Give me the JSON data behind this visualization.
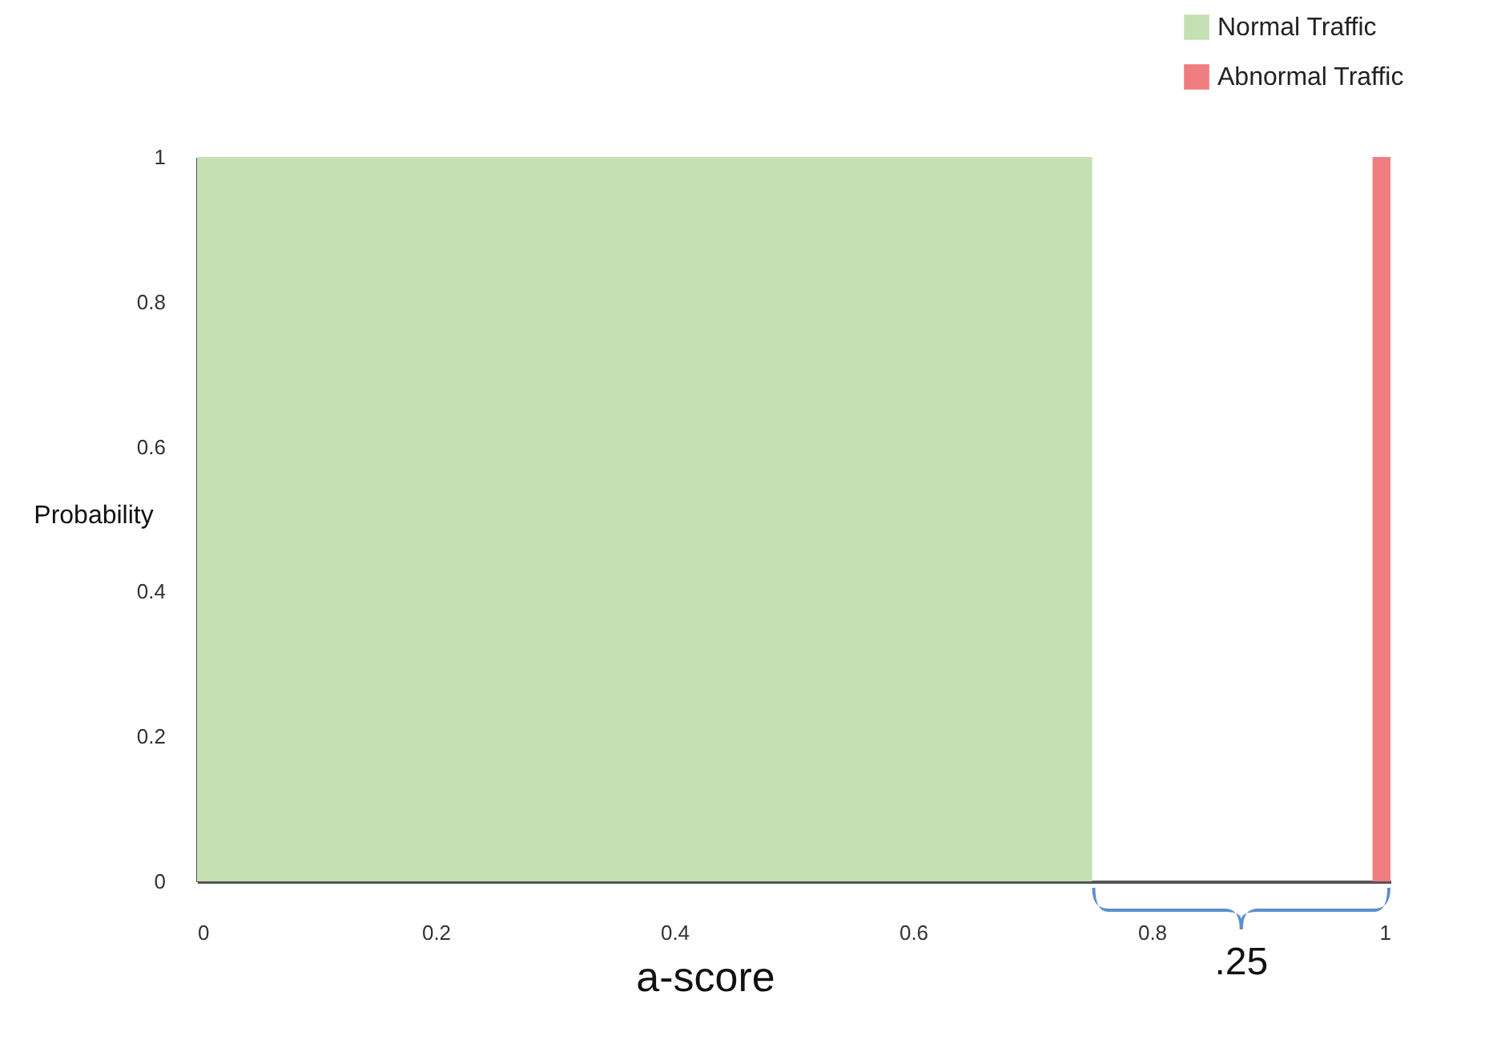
{
  "chart_data": {
    "type": "histogram",
    "xlabel": "a-score",
    "ylabel": "Probability",
    "bins": [
      0,
      0.75,
      0.985,
      1
    ],
    "series": [
      {
        "name": "Normal Traffic",
        "color": "#c5e0b3",
        "values": [
          1,
          null,
          null
        ]
      },
      {
        "name": "Abnormal Traffic",
        "color": "#f07c80",
        "values": [
          null,
          null,
          1
        ]
      }
    ],
    "xlim": [
      0,
      1
    ],
    "xticks": [
      0,
      0.2,
      0.4,
      0.6,
      0.8,
      1
    ],
    "ylim": [
      0,
      1
    ],
    "yticks": [
      0,
      0.2,
      0.4,
      0.6,
      0.8,
      1
    ],
    "legend": "top right",
    "annotations": [
      ".25"
    ]
  }
}
